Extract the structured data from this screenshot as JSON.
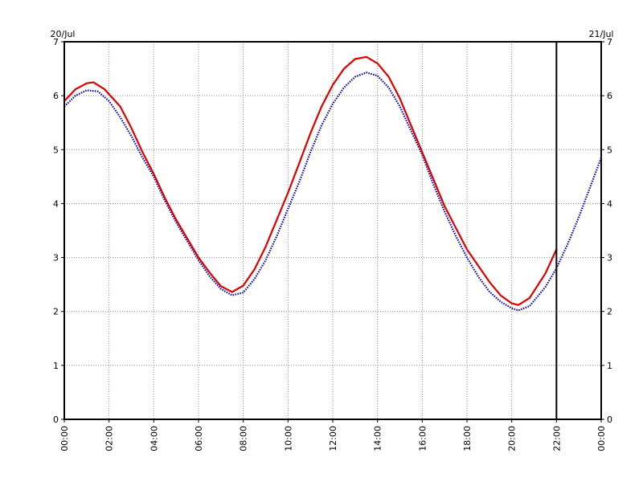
{
  "chart_data": {
    "type": "line",
    "title": "",
    "xlabel": "",
    "ylabel": "",
    "date_labels": {
      "left": "20/Jul",
      "right": "21/Jul"
    },
    "x_ticks": [
      "00:00",
      "02:00",
      "04:00",
      "06:00",
      "08:00",
      "10:00",
      "12:00",
      "14:00",
      "16:00",
      "18:00",
      "20:00",
      "22:00",
      "00:00"
    ],
    "y_ticks": [
      "0",
      "1",
      "2",
      "3",
      "4",
      "5",
      "6",
      "7"
    ],
    "xlim_hours": [
      0,
      24
    ],
    "ylim": [
      0,
      7
    ],
    "grid": true,
    "now_marker_hour": 22,
    "series": [
      {
        "color": "#0000aa",
        "style": "dotted",
        "points": [
          [
            0,
            5.8
          ],
          [
            0.5,
            6.0
          ],
          [
            1.0,
            6.1
          ],
          [
            1.5,
            6.08
          ],
          [
            2.0,
            5.9
          ],
          [
            2.5,
            5.6
          ],
          [
            3.0,
            5.25
          ],
          [
            3.5,
            4.85
          ],
          [
            4.0,
            4.5
          ],
          [
            4.5,
            4.05
          ],
          [
            5.0,
            3.65
          ],
          [
            5.5,
            3.3
          ],
          [
            6.0,
            2.95
          ],
          [
            6.5,
            2.65
          ],
          [
            7.0,
            2.42
          ],
          [
            7.5,
            2.3
          ],
          [
            8.0,
            2.35
          ],
          [
            8.5,
            2.6
          ],
          [
            9.0,
            2.95
          ],
          [
            9.5,
            3.4
          ],
          [
            10.0,
            3.9
          ],
          [
            10.5,
            4.4
          ],
          [
            11.0,
            4.95
          ],
          [
            11.5,
            5.45
          ],
          [
            12.0,
            5.85
          ],
          [
            12.5,
            6.15
          ],
          [
            13.0,
            6.35
          ],
          [
            13.5,
            6.43
          ],
          [
            14.0,
            6.37
          ],
          [
            14.5,
            6.15
          ],
          [
            15.0,
            5.8
          ],
          [
            15.5,
            5.35
          ],
          [
            16.0,
            4.9
          ],
          [
            16.5,
            4.35
          ],
          [
            17.0,
            3.85
          ],
          [
            17.5,
            3.4
          ],
          [
            18.0,
            3.0
          ],
          [
            18.5,
            2.65
          ],
          [
            19.0,
            2.37
          ],
          [
            19.5,
            2.18
          ],
          [
            20.0,
            2.06
          ],
          [
            20.3,
            2.02
          ],
          [
            20.8,
            2.1
          ],
          [
            21.5,
            2.45
          ],
          [
            22.0,
            2.8
          ],
          [
            22.5,
            3.25
          ],
          [
            23.0,
            3.75
          ],
          [
            23.5,
            4.3
          ],
          [
            24.0,
            4.85
          ]
        ]
      },
      {
        "color": "#dd0000",
        "style": "solid",
        "points": [
          [
            0,
            5.9
          ],
          [
            0.5,
            6.12
          ],
          [
            1.0,
            6.23
          ],
          [
            1.3,
            6.25
          ],
          [
            1.8,
            6.12
          ],
          [
            2.5,
            5.8
          ],
          [
            3.0,
            5.4
          ],
          [
            3.5,
            4.95
          ],
          [
            4.0,
            4.55
          ],
          [
            4.5,
            4.1
          ],
          [
            5.0,
            3.7
          ],
          [
            5.5,
            3.35
          ],
          [
            6.0,
            3.0
          ],
          [
            6.5,
            2.72
          ],
          [
            7.0,
            2.47
          ],
          [
            7.5,
            2.36
          ],
          [
            8.0,
            2.48
          ],
          [
            8.5,
            2.78
          ],
          [
            9.0,
            3.2
          ],
          [
            9.5,
            3.7
          ],
          [
            10.0,
            4.2
          ],
          [
            10.5,
            4.75
          ],
          [
            11.0,
            5.3
          ],
          [
            11.5,
            5.8
          ],
          [
            12.0,
            6.2
          ],
          [
            12.5,
            6.5
          ],
          [
            13.0,
            6.68
          ],
          [
            13.5,
            6.72
          ],
          [
            14.0,
            6.6
          ],
          [
            14.5,
            6.35
          ],
          [
            15.0,
            5.95
          ],
          [
            15.5,
            5.45
          ],
          [
            16.0,
            4.95
          ],
          [
            16.5,
            4.45
          ],
          [
            17.0,
            3.95
          ],
          [
            17.5,
            3.55
          ],
          [
            18.0,
            3.15
          ],
          [
            18.5,
            2.85
          ],
          [
            19.0,
            2.55
          ],
          [
            19.5,
            2.3
          ],
          [
            20.0,
            2.15
          ],
          [
            20.3,
            2.12
          ],
          [
            20.8,
            2.25
          ],
          [
            21.5,
            2.7
          ],
          [
            22.0,
            3.15
          ]
        ]
      }
    ]
  }
}
